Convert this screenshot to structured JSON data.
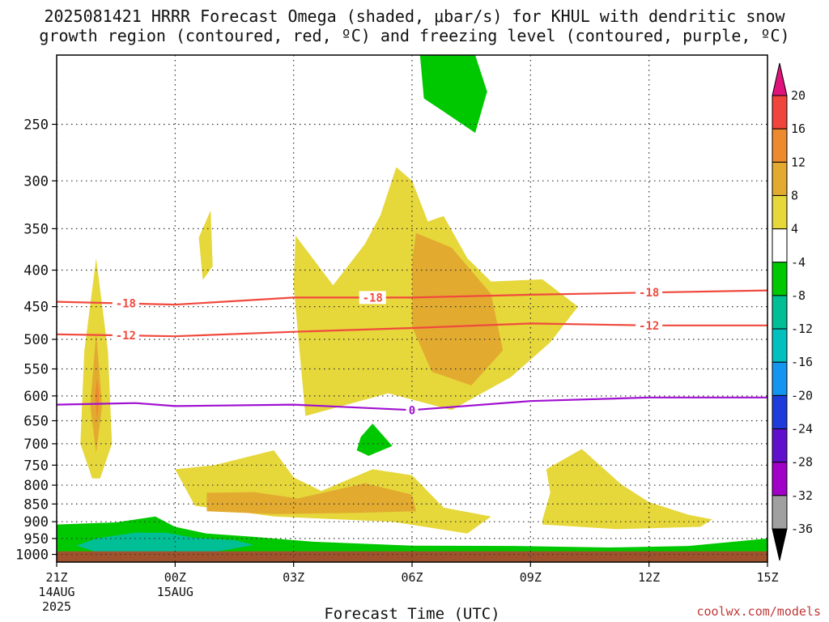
{
  "title": "2025081421 HRRR Forecast Omega (shaded, μbar/s) for KHUL with dendritic snow\ngrowth region (contoured, red, ºC) and freezing level (contoured, purple, ºC)",
  "credit": "coolwx.com/models",
  "chart_data": {
    "type": "heatmap",
    "title": "2025081421 HRRR Forecast Omega (shaded, μbar/s) for KHUL with dendritic snow growth region (contoured, red, ºC) and freezing level (contoured, purple, ºC)",
    "xlabel": "Forecast Time (UTC)",
    "ylabel": "",
    "x_range_hours": [
      0,
      18
    ],
    "y_range_hpa": [
      200,
      1025
    ],
    "y_ticks": [
      250,
      300,
      350,
      400,
      450,
      500,
      550,
      600,
      650,
      700,
      750,
      800,
      850,
      900,
      950,
      1000
    ],
    "x_ticks": [
      {
        "hour": 0,
        "label": "21Z",
        "sub1": "14AUG",
        "sub2": "2025"
      },
      {
        "hour": 3,
        "label": "00Z",
        "sub1": "15AUG",
        "sub2": ""
      },
      {
        "hour": 6,
        "label": "03Z",
        "sub1": "",
        "sub2": ""
      },
      {
        "hour": 9,
        "label": "06Z",
        "sub1": "",
        "sub2": ""
      },
      {
        "hour": 12,
        "label": "09Z",
        "sub1": "",
        "sub2": ""
      },
      {
        "hour": 15,
        "label": "12Z",
        "sub1": "",
        "sub2": ""
      },
      {
        "hour": 18,
        "label": "15Z",
        "sub1": "",
        "sub2": ""
      }
    ],
    "grid": true,
    "legend_placement": "right",
    "colorbar": {
      "labels": [
        "20",
        "16",
        "12",
        "8",
        "4",
        "-4",
        "-8",
        "-12",
        "-16",
        "-20",
        "-24",
        "-28",
        "-32",
        "-36"
      ],
      "colors": [
        "#e0127c",
        "#f0443c",
        "#ee8a2e",
        "#e3aa30",
        "#e6d73a",
        "#ffffff",
        "#00c800",
        "#00be96",
        "#00c0c0",
        "#1496f0",
        "#1e3cdc",
        "#6010cc",
        "#a000c8",
        "#a0a0a0",
        "#000000"
      ]
    },
    "contours": [
      {
        "field": "temperature",
        "color": "#f04a3e",
        "value": -18,
        "points": [
          [
            0,
            443
          ],
          [
            3,
            447
          ],
          [
            6,
            437
          ],
          [
            9,
            437
          ],
          [
            12,
            433
          ],
          [
            15,
            430
          ],
          [
            18,
            427
          ]
        ],
        "labels": [
          {
            "text": "-18",
            "hour": 1.75
          },
          {
            "text": "-18",
            "hour": 8.0
          },
          {
            "text": "-18",
            "hour": 15.0
          }
        ]
      },
      {
        "field": "temperature",
        "color": "#f04a3e",
        "value": -12,
        "points": [
          [
            0,
            492
          ],
          [
            3,
            495
          ],
          [
            6,
            488
          ],
          [
            9,
            482
          ],
          [
            12,
            475
          ],
          [
            15,
            478
          ],
          [
            18,
            478
          ]
        ],
        "labels": [
          {
            "text": "-12",
            "hour": 1.75
          },
          {
            "text": "-12",
            "hour": 15.0
          }
        ]
      },
      {
        "field": "freezing_level",
        "color": "#a010d0",
        "value": 0,
        "points": [
          [
            0,
            617
          ],
          [
            2,
            614
          ],
          [
            3,
            620
          ],
          [
            6,
            617
          ],
          [
            9,
            628
          ],
          [
            12,
            610
          ],
          [
            15,
            603
          ],
          [
            18,
            603
          ]
        ],
        "labels": [
          {
            "text": "0",
            "hour": 9.0
          }
        ]
      }
    ],
    "shaded_regions": [
      {
        "label": "4",
        "color": "#e6d73a",
        "points": [
          [
            0.9,
            783
          ],
          [
            0.6,
            700
          ],
          [
            0.7,
            520
          ],
          [
            1.0,
            385
          ],
          [
            1.3,
            520
          ],
          [
            1.4,
            700
          ],
          [
            1.1,
            783
          ]
        ]
      },
      {
        "label": "8",
        "color": "#e3aa30",
        "points": [
          [
            1.0,
            720
          ],
          [
            0.85,
            620
          ],
          [
            1.0,
            488
          ],
          [
            1.15,
            620
          ]
        ]
      },
      {
        "label": "12",
        "color": "#ee8a2e",
        "points": [
          [
            1.03,
            650
          ],
          [
            0.97,
            600
          ],
          [
            1.03,
            565
          ],
          [
            1.08,
            600
          ]
        ]
      },
      {
        "label": "4",
        "color": "#e6d73a",
        "points": [
          [
            3.7,
            413
          ],
          [
            3.6,
            360
          ],
          [
            3.9,
            330
          ],
          [
            3.95,
            395
          ]
        ]
      },
      {
        "label": "4",
        "color": "#e6d73a",
        "points": [
          [
            6.3,
            640
          ],
          [
            6.0,
            420
          ],
          [
            6.05,
            358
          ],
          [
            7.0,
            420
          ],
          [
            7.8,
            368
          ],
          [
            8.2,
            335
          ],
          [
            8.6,
            287
          ],
          [
            9.0,
            300
          ],
          [
            9.4,
            342
          ],
          [
            9.8,
            336
          ],
          [
            10.4,
            385
          ],
          [
            11.0,
            415
          ],
          [
            12.3,
            412
          ],
          [
            13.2,
            450
          ],
          [
            12.5,
            505
          ],
          [
            11.5,
            565
          ],
          [
            10.0,
            628
          ],
          [
            8.4,
            595
          ]
        ]
      },
      {
        "label": "8",
        "color": "#e3aa30",
        "points": [
          [
            9.0,
            388
          ],
          [
            9.1,
            355
          ],
          [
            10.0,
            372
          ],
          [
            11.0,
            432
          ],
          [
            11.3,
            518
          ],
          [
            10.5,
            580
          ],
          [
            9.5,
            555
          ],
          [
            9.0,
            480
          ]
        ]
      },
      {
        "label": "4",
        "color": "#e6d73a",
        "points": [
          [
            3.0,
            760
          ],
          [
            4.0,
            750
          ],
          [
            5.5,
            715
          ],
          [
            6.0,
            780
          ],
          [
            6.7,
            815
          ],
          [
            8.0,
            760
          ],
          [
            9.0,
            775
          ],
          [
            9.8,
            860
          ],
          [
            11.0,
            885
          ],
          [
            10.4,
            935
          ],
          [
            8.5,
            900
          ],
          [
            5.5,
            885
          ],
          [
            3.5,
            855
          ]
        ]
      },
      {
        "label": "8",
        "color": "#e3aa30",
        "points": [
          [
            3.8,
            870
          ],
          [
            3.8,
            820
          ],
          [
            5.0,
            818
          ],
          [
            6.1,
            835
          ],
          [
            7.8,
            795
          ],
          [
            9.0,
            825
          ],
          [
            9.1,
            870
          ],
          [
            7.5,
            875
          ],
          [
            5.5,
            878
          ]
        ]
      },
      {
        "label": "4",
        "color": "#e6d73a",
        "points": [
          [
            12.3,
            895
          ],
          [
            12.5,
            820
          ],
          [
            12.4,
            760
          ],
          [
            13.3,
            712
          ],
          [
            14.3,
            798
          ],
          [
            15.0,
            845
          ],
          [
            16.0,
            880
          ],
          [
            16.6,
            893
          ],
          [
            16.3,
            915
          ],
          [
            14.2,
            922
          ],
          [
            12.3,
            908
          ]
        ]
      },
      {
        "label": "-4",
        "color": "#00c800",
        "points": [
          [
            9.3,
            230
          ],
          [
            9.2,
            200
          ],
          [
            10.6,
            200
          ],
          [
            10.9,
            225
          ],
          [
            10.6,
            257
          ],
          [
            9.8,
            240
          ]
        ]
      },
      {
        "label": "-4",
        "color": "#00c800",
        "points": [
          [
            7.6,
            715
          ],
          [
            7.7,
            685
          ],
          [
            8.0,
            656
          ],
          [
            8.5,
            705
          ],
          [
            7.9,
            728
          ]
        ]
      },
      {
        "label": "-4",
        "color": "#00c800",
        "points": [
          [
            0,
            908
          ],
          [
            1.5,
            902
          ],
          [
            2.5,
            885
          ],
          [
            3.0,
            915
          ],
          [
            3.8,
            935
          ],
          [
            5.0,
            945
          ],
          [
            6.5,
            960
          ],
          [
            9.0,
            972
          ],
          [
            11.5,
            973
          ],
          [
            14.0,
            978
          ],
          [
            16.0,
            973
          ],
          [
            18.0,
            950
          ],
          [
            18.0,
            995
          ],
          [
            0,
            995
          ]
        ]
      },
      {
        "label": "-8",
        "color": "#00be96",
        "points": [
          [
            0.5,
            972
          ],
          [
            1.0,
            950
          ],
          [
            2.0,
            932
          ],
          [
            2.8,
            933
          ],
          [
            3.5,
            948
          ],
          [
            4.5,
            955
          ],
          [
            5.0,
            970
          ],
          [
            4.0,
            992
          ],
          [
            1.0,
            992
          ]
        ]
      },
      {
        "label": "ground",
        "color": "#a0522d",
        "points": [
          [
            0,
            990
          ],
          [
            18,
            990
          ],
          [
            18,
            1025
          ],
          [
            0,
            1025
          ]
        ]
      }
    ]
  }
}
